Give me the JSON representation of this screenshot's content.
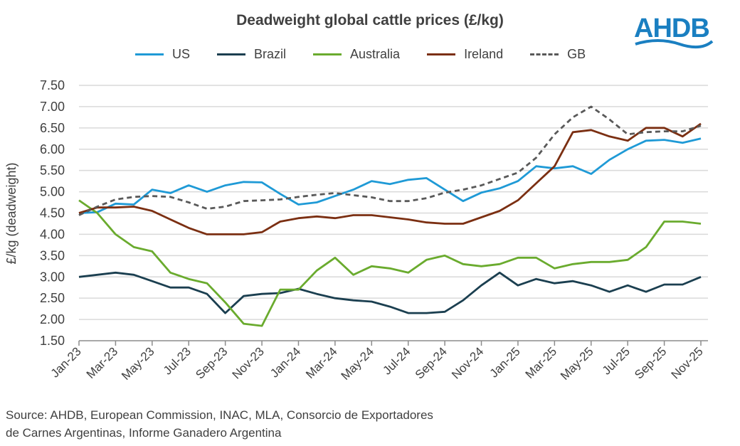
{
  "logo_text": "AHDB",
  "source_lines": [
    "Source: AHDB, European Commission, INAC, MLA, Consorcio de Exportadores",
    "de Carnes Argentinas, Informe Ganadero Argentina"
  ],
  "chart_data": {
    "type": "line",
    "title": "Deadweight global cattle prices (£/kg)",
    "xlabel": "",
    "ylabel": "£/kg (deadweight)",
    "ylim": [
      1.5,
      7.5
    ],
    "yticks": [
      "1.50",
      "2.00",
      "2.50",
      "3.00",
      "3.50",
      "4.00",
      "4.50",
      "5.00",
      "5.50",
      "6.00",
      "6.50",
      "7.00",
      "7.50"
    ],
    "grid": true,
    "legend": "top",
    "x": [
      "Jan-23",
      "Feb-23",
      "Mar-23",
      "Apr-23",
      "May-23",
      "Jun-23",
      "Jul-23",
      "Aug-23",
      "Sep-23",
      "Oct-23",
      "Nov-23",
      "Dec-23",
      "Jan-24",
      "Feb-24",
      "Mar-24",
      "Apr-24",
      "May-24",
      "Jun-24",
      "Jul-24",
      "Aug-24",
      "Sep-24",
      "Oct-24",
      "Nov-24",
      "Dec-24",
      "Jan-25",
      "Feb-25",
      "Mar-25",
      "Apr-25",
      "May-25",
      "Jun-25",
      "Jul-25",
      "Aug-25",
      "Sep-25",
      "Oct-25",
      "Nov-25"
    ],
    "xticks": [
      "Jan-23",
      "Mar-23",
      "May-23",
      "Jul-23",
      "Sep-23",
      "Nov-23",
      "Jan-24",
      "Mar-24",
      "May-24",
      "Jul-24",
      "Sep-24",
      "Nov-24",
      "Jan-25",
      "Mar-25",
      "May-25",
      "Jul-25",
      "Sep-25",
      "Nov-25"
    ],
    "series": [
      {
        "name": "US",
        "color": "#1f9ad6",
        "dashed": false,
        "values": [
          4.5,
          4.52,
          4.72,
          4.7,
          5.05,
          4.97,
          5.15,
          5.0,
          5.15,
          5.23,
          5.22,
          4.95,
          4.7,
          4.75,
          4.9,
          5.05,
          5.25,
          5.18,
          5.28,
          5.32,
          5.05,
          4.78,
          4.98,
          5.08,
          5.25,
          5.6,
          5.55,
          5.6,
          5.42,
          5.75,
          6.0,
          6.2,
          6.22,
          6.15,
          6.25
        ]
      },
      {
        "name": "Brazil",
        "color": "#1b3f50",
        "dashed": false,
        "values": [
          3.0,
          3.05,
          3.1,
          3.05,
          2.9,
          2.75,
          2.75,
          2.6,
          2.15,
          2.55,
          2.6,
          2.62,
          2.72,
          2.6,
          2.5,
          2.45,
          2.42,
          2.3,
          2.15,
          2.15,
          2.18,
          2.45,
          2.8,
          3.1,
          2.8,
          2.95,
          2.85,
          2.9,
          2.8,
          2.65,
          2.8,
          2.65,
          2.82,
          2.82,
          3.0
        ]
      },
      {
        "name": "Australia",
        "color": "#6aab2e",
        "dashed": false,
        "values": [
          4.8,
          4.5,
          4.0,
          3.7,
          3.6,
          3.1,
          2.95,
          2.85,
          2.4,
          1.9,
          1.85,
          2.7,
          2.7,
          3.15,
          3.45,
          3.05,
          3.25,
          3.2,
          3.1,
          3.4,
          3.5,
          3.3,
          3.25,
          3.3,
          3.45,
          3.45,
          3.2,
          3.3,
          3.35,
          3.35,
          3.4,
          3.7,
          4.3,
          4.3,
          4.25
        ]
      },
      {
        "name": "Ireland",
        "color": "#7b2f12",
        "dashed": false,
        "values": [
          4.5,
          4.63,
          4.63,
          4.65,
          4.55,
          4.35,
          4.15,
          4.0,
          4.0,
          4.0,
          4.05,
          4.3,
          4.38,
          4.42,
          4.38,
          4.45,
          4.45,
          4.4,
          4.35,
          4.28,
          4.25,
          4.25,
          4.4,
          4.55,
          4.8,
          5.2,
          5.6,
          6.4,
          6.45,
          6.3,
          6.2,
          6.5,
          6.5,
          6.3,
          6.6
        ]
      },
      {
        "name": "GB",
        "color": "#595959",
        "dashed": true,
        "values": [
          4.45,
          4.65,
          4.82,
          4.88,
          4.9,
          4.88,
          4.75,
          4.6,
          4.65,
          4.78,
          4.8,
          4.82,
          4.88,
          4.93,
          4.97,
          4.92,
          4.87,
          4.78,
          4.78,
          4.85,
          4.98,
          5.05,
          5.15,
          5.3,
          5.45,
          5.8,
          6.35,
          6.75,
          7.0,
          6.7,
          6.35,
          6.4,
          6.42,
          6.42,
          6.55
        ]
      }
    ]
  }
}
